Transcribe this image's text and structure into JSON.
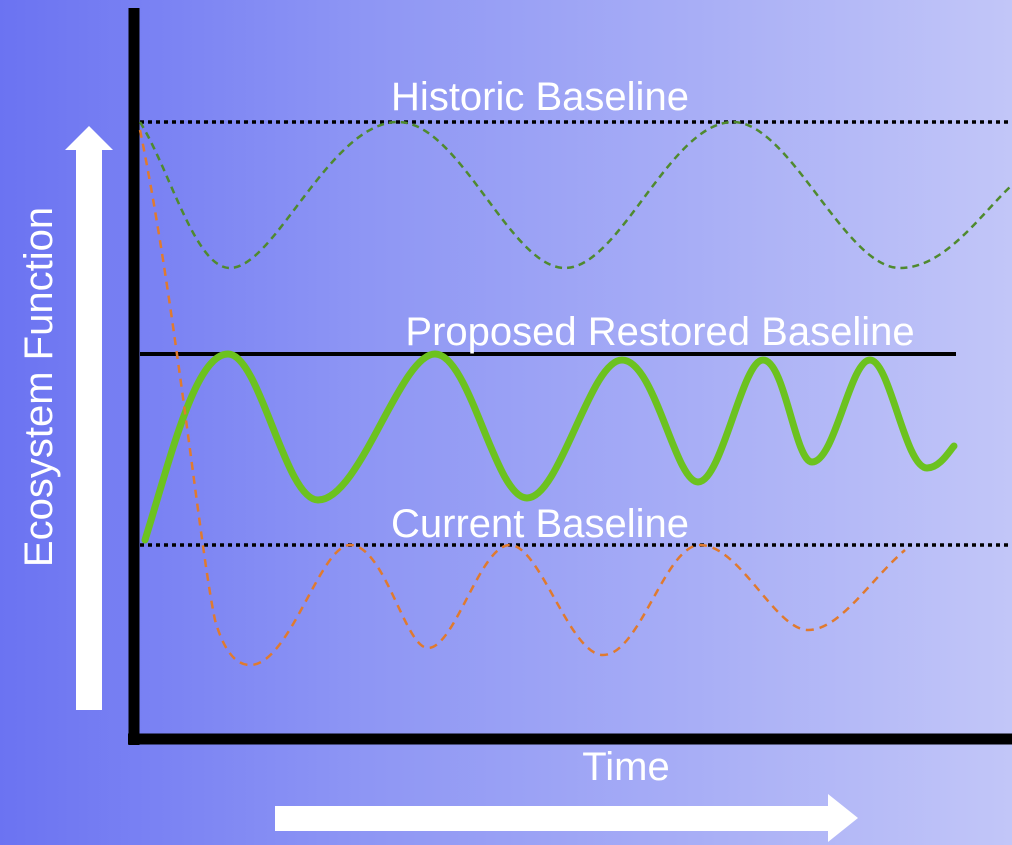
{
  "labels": {
    "y_axis": "Ecosystem Function",
    "x_axis": "Time",
    "historic": "Historic Baseline",
    "proposed": "Proposed Restored Baseline",
    "current": "Current Baseline"
  },
  "colors": {
    "historic_curve": "#4f8a2e",
    "restored_curve": "#6cc21f",
    "current_curve": "#e07a2e",
    "axes": "#000000",
    "arrows": "#ffffff"
  }
}
